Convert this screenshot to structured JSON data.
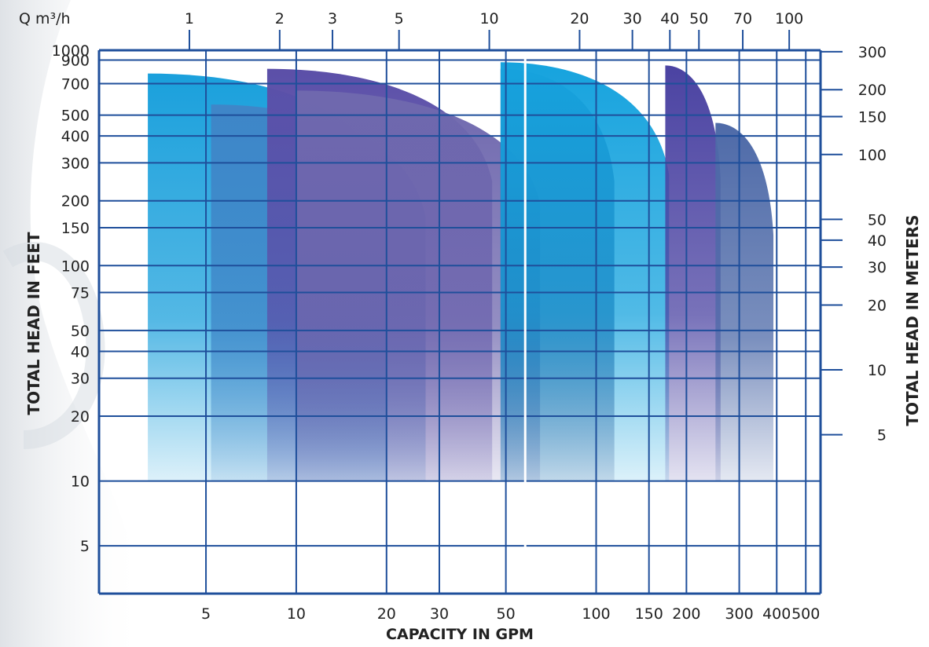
{
  "chart_data": {
    "type": "area",
    "title": "",
    "xlabel": "CAPACITY IN GPM",
    "ylabel": "TOTAL HEAD IN FEET",
    "ylabel_right": "TOTAL HEAD IN METERS",
    "xlabel_top": "Q m³/h",
    "x_scale": "log",
    "y_scale": "log",
    "xlim": [
      2.2,
      560
    ],
    "ylim": [
      3,
      1000
    ],
    "grid": true,
    "legend": "none",
    "x_ticks_gpm": [
      "5",
      "10",
      "20",
      "30",
      "50",
      "100",
      "150",
      "200",
      "300",
      "400",
      "500"
    ],
    "x_ticks_m3h": [
      "1",
      "2",
      "3",
      "5",
      "10",
      "20",
      "30",
      "40",
      "50",
      "70",
      "100"
    ],
    "y_ticks_feet": [
      "1000",
      "900",
      "700",
      "500",
      "400",
      "300",
      "200",
      "150",
      "100",
      "75",
      "50",
      "40",
      "30",
      "20",
      "10",
      "5"
    ],
    "y_ticks_meters": [
      "300",
      "200",
      "150",
      "100",
      "50",
      "40",
      "30",
      "20",
      "10",
      "5"
    ],
    "series": [
      {
        "x_start": 3.2,
        "max_flow": 20,
        "shutoff_head": 780,
        "min_head": 10,
        "color": "#1aa0dc"
      },
      {
        "x_start": 5.2,
        "max_flow": 27,
        "shutoff_head": 560,
        "min_head": 10,
        "color": "#3f86c8"
      },
      {
        "x_start": 8,
        "max_flow": 45,
        "shutoff_head": 820,
        "min_head": 10,
        "color": "#5b4fa8"
      },
      {
        "x_start": 10,
        "max_flow": 65,
        "shutoff_head": 650,
        "min_head": 10,
        "color": "#6f68ae"
      },
      {
        "x_start": 48,
        "max_flow": 115,
        "shutoff_head": 820,
        "min_head": 10,
        "color": "#2c3f80"
      },
      {
        "x_start": 48,
        "max_flow": 175,
        "shutoff_head": 880,
        "min_head": 10,
        "color": "#16a3de"
      },
      {
        "x_start": 170,
        "max_flow": 260,
        "shutoff_head": 850,
        "min_head": 10,
        "color": "#4b43a2"
      },
      {
        "x_start": 250,
        "max_flow": 390,
        "shutoff_head": 460,
        "min_head": 10,
        "color": "#4e6aa8"
      }
    ]
  }
}
